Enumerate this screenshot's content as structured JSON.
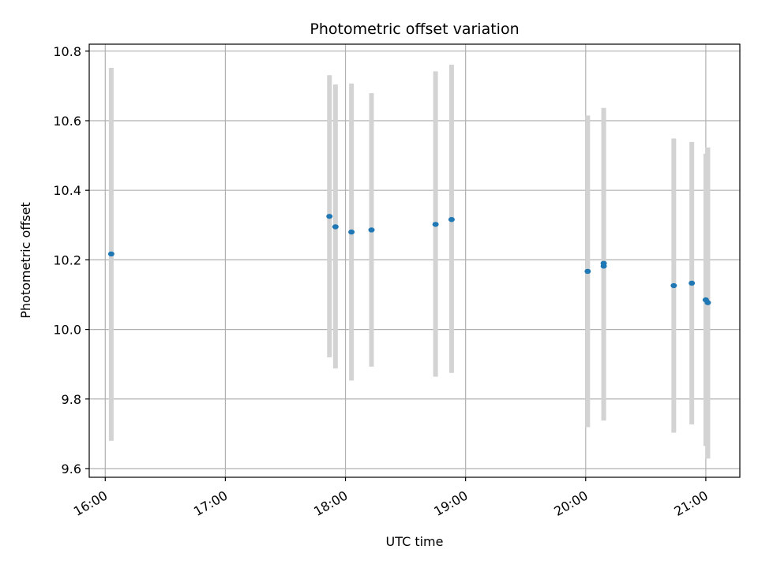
{
  "chart_data": {
    "type": "scatter",
    "title": "Photometric offset variation",
    "xlabel": "UTC time",
    "ylabel": "Photometric offset",
    "x_tick_labels": [
      "16:00",
      "17:00",
      "18:00",
      "19:00",
      "20:00",
      "21:00"
    ],
    "x_ticks": [
      "16:00",
      "17:00",
      "18:00",
      "19:00",
      "20:00",
      "21:00"
    ],
    "y_ticks": [
      9.6,
      9.8,
      10.0,
      10.2,
      10.4,
      10.6,
      10.8
    ],
    "y_tick_labels": [
      "9.6",
      "9.8",
      "10.0",
      "10.2",
      "10.4",
      "10.6",
      "10.8"
    ],
    "xlim": [
      "15:52",
      "21:17"
    ],
    "ylim": [
      9.575,
      10.82
    ],
    "grid": true,
    "colors": {
      "marker": "#1f77b4",
      "errorbar": "#d3d3d3",
      "grid": "#b0b0b0"
    },
    "points": [
      {
        "x": "16:03",
        "y": 10.217,
        "ymin": 9.68,
        "ymax": 10.752
      },
      {
        "x": "17:52",
        "y": 10.325,
        "ymin": 9.92,
        "ymax": 10.731
      },
      {
        "x": "17:55",
        "y": 10.295,
        "ymin": 9.888,
        "ymax": 10.704
      },
      {
        "x": "18:03",
        "y": 10.28,
        "ymin": 9.853,
        "ymax": 10.707
      },
      {
        "x": "18:13",
        "y": 10.286,
        "ymin": 9.893,
        "ymax": 10.679
      },
      {
        "x": "18:45",
        "y": 10.302,
        "ymin": 9.864,
        "ymax": 10.742
      },
      {
        "x": "18:53",
        "y": 10.316,
        "ymin": 9.875,
        "ymax": 10.761
      },
      {
        "x": "20:01",
        "y": 10.167,
        "ymin": 9.719,
        "ymax": 10.615
      },
      {
        "x": "20:09",
        "y": 10.182,
        "ymin": 9.738,
        "ymax": 10.627
      },
      {
        "x": "20:09",
        "y": 10.19,
        "ymin": 9.744,
        "ymax": 10.637
      },
      {
        "x": "20:44",
        "y": 10.126,
        "ymin": 9.703,
        "ymax": 10.549
      },
      {
        "x": "20:53",
        "y": 10.133,
        "ymin": 9.727,
        "ymax": 10.539
      },
      {
        "x": "21:00",
        "y": 10.085,
        "ymin": 9.665,
        "ymax": 10.505
      },
      {
        "x": "21:01",
        "y": 10.077,
        "ymin": 9.629,
        "ymax": 10.523
      }
    ]
  }
}
